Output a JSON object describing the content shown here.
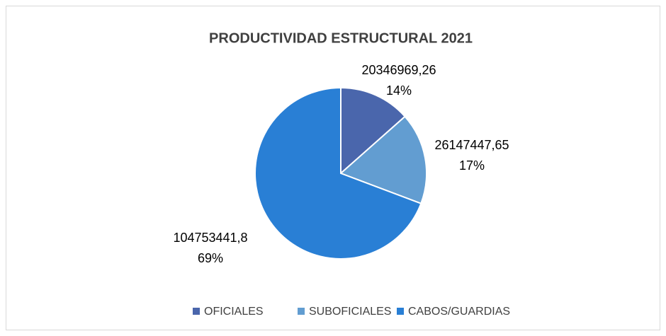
{
  "chart_data": {
    "type": "pie",
    "title": "PRODUCTIVIDAD ESTRUCTURAL 2021",
    "categories": [
      "OFICIALES",
      "SUBOFICIALES",
      "CABOS/GUARDIAS"
    ],
    "values": [
      20346969.26,
      26147447.65,
      104753441.8
    ],
    "value_labels": [
      "20346969,26",
      "26147447,65",
      "104753441,8"
    ],
    "percent_labels": [
      "14%",
      "17%",
      "69%"
    ],
    "colors": [
      "#4a66ac",
      "#629dd1",
      "#297fd5"
    ],
    "legend": "bottom"
  }
}
